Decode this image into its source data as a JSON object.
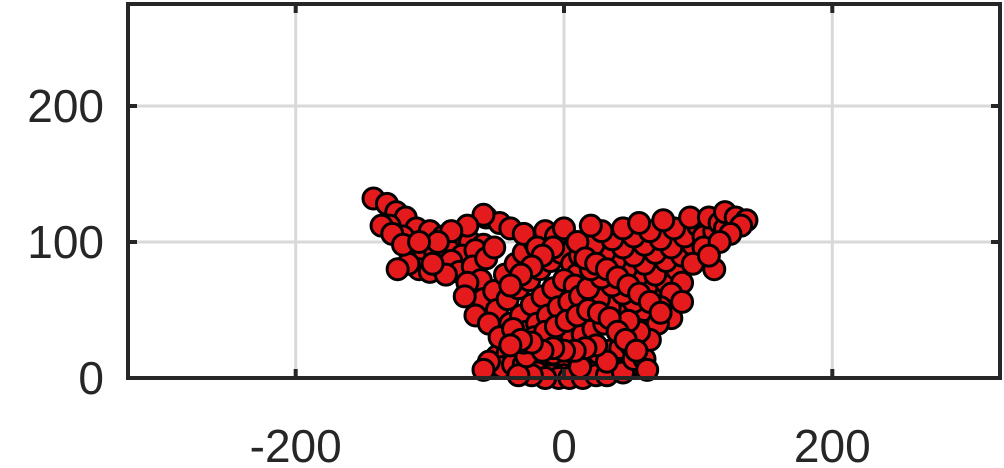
{
  "chart_data": {
    "type": "scatter",
    "title": "",
    "xlabel": "",
    "ylabel": "",
    "xlim": [
      -325,
      325
    ],
    "ylim": [
      0,
      275
    ],
    "x_ticks": [
      -200,
      0,
      200
    ],
    "x_tick_labels": [
      "-200",
      "0",
      "200"
    ],
    "y_ticks": [
      0,
      100,
      200
    ],
    "y_tick_labels": [
      "0",
      "100",
      "200"
    ],
    "grid": true,
    "legend": "none",
    "marker_color": "#e41a1c",
    "marker_edge_color": "#000000",
    "series": [
      {
        "points": [
          [
            -142,
            132
          ],
          [
            -132,
            128
          ],
          [
            -125,
            122
          ],
          [
            -118,
            118
          ],
          [
            -130,
            112
          ],
          [
            -110,
            110
          ],
          [
            -120,
            104
          ],
          [
            -100,
            108
          ],
          [
            -90,
            104
          ],
          [
            -80,
            102
          ],
          [
            -70,
            100
          ],
          [
            -60,
            98
          ],
          [
            -112,
            96
          ],
          [
            -104,
            90
          ],
          [
            -96,
            92
          ],
          [
            -86,
            94
          ],
          [
            -76,
            90
          ],
          [
            -66,
            94
          ],
          [
            -108,
            80
          ],
          [
            -100,
            78
          ],
          [
            -92,
            82
          ],
          [
            -84,
            86
          ],
          [
            -78,
            78
          ],
          [
            -68,
            82
          ],
          [
            -58,
            88
          ],
          [
            -52,
            96
          ],
          [
            -62,
            72
          ],
          [
            -72,
            70
          ],
          [
            -60,
            58
          ],
          [
            -52,
            64
          ],
          [
            -44,
            76
          ],
          [
            -36,
            84
          ],
          [
            -30,
            92
          ],
          [
            -22,
            100
          ],
          [
            -14,
            108
          ],
          [
            -6,
            104
          ],
          [
            -58,
            118
          ],
          [
            -48,
            114
          ],
          [
            -40,
            110
          ],
          [
            -30,
            106
          ],
          [
            -20,
            96
          ],
          [
            -50,
            50
          ],
          [
            -42,
            58
          ],
          [
            -34,
            66
          ],
          [
            -26,
            72
          ],
          [
            -18,
            80
          ],
          [
            -10,
            86
          ],
          [
            -2,
            92
          ],
          [
            6,
            84
          ],
          [
            10,
            76
          ],
          [
            -40,
            40
          ],
          [
            -32,
            46
          ],
          [
            -24,
            54
          ],
          [
            -16,
            60
          ],
          [
            -8,
            66
          ],
          [
            0,
            72
          ],
          [
            8,
            68
          ],
          [
            -46,
            26
          ],
          [
            -36,
            30
          ],
          [
            -28,
            34
          ],
          [
            -20,
            40
          ],
          [
            -12,
            46
          ],
          [
            -4,
            52
          ],
          [
            4,
            56
          ],
          [
            12,
            60
          ],
          [
            20,
            64
          ],
          [
            -50,
            16
          ],
          [
            -42,
            18
          ],
          [
            -34,
            20
          ],
          [
            -26,
            22
          ],
          [
            -18,
            24
          ],
          [
            -10,
            26
          ],
          [
            -2,
            28
          ],
          [
            6,
            30
          ],
          [
            14,
            32
          ],
          [
            22,
            36
          ],
          [
            30,
            40
          ],
          [
            -46,
            8
          ],
          [
            -38,
            10
          ],
          [
            -30,
            10
          ],
          [
            -22,
            12
          ],
          [
            -14,
            12
          ],
          [
            -6,
            14
          ],
          [
            2,
            14
          ],
          [
            10,
            16
          ],
          [
            18,
            16
          ],
          [
            26,
            18
          ],
          [
            34,
            20
          ],
          [
            42,
            22
          ],
          [
            50,
            24
          ],
          [
            -30,
            4
          ],
          [
            -20,
            4
          ],
          [
            -10,
            2
          ],
          [
            0,
            2
          ],
          [
            10,
            4
          ],
          [
            20,
            4
          ],
          [
            30,
            6
          ],
          [
            40,
            6
          ],
          [
            48,
            8
          ],
          [
            56,
            10
          ],
          [
            -4,
            0
          ],
          [
            4,
            0
          ],
          [
            -14,
            0
          ],
          [
            14,
            0
          ],
          [
            24,
            2
          ],
          [
            -24,
            2
          ],
          [
            32,
            2
          ],
          [
            -34,
            2
          ],
          [
            44,
            4
          ],
          [
            52,
            14
          ],
          [
            60,
            14
          ],
          [
            -56,
            12
          ],
          [
            -60,
            6
          ],
          [
            62,
            6
          ],
          [
            58,
            30
          ],
          [
            50,
            38
          ],
          [
            42,
            46
          ],
          [
            34,
            52
          ],
          [
            26,
            58
          ],
          [
            18,
            66
          ],
          [
            60,
            50
          ],
          [
            52,
            56
          ],
          [
            44,
            62
          ],
          [
            36,
            68
          ],
          [
            28,
            74
          ],
          [
            20,
            80
          ],
          [
            12,
            90
          ],
          [
            70,
            60
          ],
          [
            62,
            68
          ],
          [
            54,
            74
          ],
          [
            46,
            80
          ],
          [
            38,
            86
          ],
          [
            30,
            92
          ],
          [
            22,
            98
          ],
          [
            76,
            70
          ],
          [
            68,
            76
          ],
          [
            60,
            84
          ],
          [
            52,
            90
          ],
          [
            44,
            96
          ],
          [
            36,
            102
          ],
          [
            28,
            108
          ],
          [
            20,
            112
          ],
          [
            84,
            80
          ],
          [
            76,
            86
          ],
          [
            68,
            92
          ],
          [
            60,
            98
          ],
          [
            52,
            104
          ],
          [
            44,
            110
          ],
          [
            88,
            90
          ],
          [
            80,
            96
          ],
          [
            72,
            102
          ],
          [
            64,
            108
          ],
          [
            56,
            114
          ],
          [
            96,
            98
          ],
          [
            90,
            104
          ],
          [
            82,
            110
          ],
          [
            74,
            116
          ],
          [
            100,
            112
          ],
          [
            94,
            118
          ],
          [
            104,
            104
          ],
          [
            112,
            108
          ],
          [
            108,
            118
          ],
          [
            116,
            114
          ],
          [
            120,
            110
          ],
          [
            112,
            80
          ],
          [
            104,
            96
          ],
          [
            96,
            84
          ],
          [
            88,
            70
          ],
          [
            80,
            62
          ],
          [
            72,
            52
          ],
          [
            80,
            44
          ],
          [
            88,
            56
          ],
          [
            70,
            40
          ],
          [
            64,
            28
          ],
          [
            56,
            34
          ],
          [
            48,
            42
          ],
          [
            -28,
            16
          ],
          [
            -8,
            18
          ],
          [
            12,
            8
          ],
          [
            32,
            12
          ],
          [
            -60,
            120
          ],
          [
            -72,
            112
          ],
          [
            -84,
            108
          ],
          [
            -94,
            100
          ],
          [
            -116,
            84
          ],
          [
            -124,
            80
          ],
          [
            -88,
            76
          ],
          [
            -74,
            60
          ],
          [
            -66,
            46
          ],
          [
            -56,
            40
          ],
          [
            -48,
            30
          ],
          [
            -38,
            36
          ],
          [
            -30,
            26
          ],
          [
            -22,
            30
          ],
          [
            -14,
            34
          ],
          [
            -6,
            38
          ],
          [
            2,
            42
          ],
          [
            10,
            46
          ],
          [
            18,
            50
          ],
          [
            26,
            48
          ],
          [
            34,
            44
          ],
          [
            40,
            34
          ],
          [
            46,
            28
          ],
          [
            54,
            20
          ],
          [
            0,
            110
          ],
          [
            10,
            100
          ],
          [
            -8,
            96
          ],
          [
            16,
            88
          ],
          [
            -16,
            90
          ],
          [
            24,
            84
          ],
          [
            -24,
            82
          ],
          [
            -32,
            76
          ],
          [
            -40,
            68
          ],
          [
            32,
            80
          ],
          [
            40,
            74
          ],
          [
            48,
            68
          ],
          [
            56,
            62
          ],
          [
            64,
            56
          ],
          [
            72,
            48
          ],
          [
            24,
            24
          ],
          [
            16,
            22
          ],
          [
            8,
            20
          ],
          [
            0,
            20
          ],
          [
            -8,
            22
          ],
          [
            -16,
            20
          ],
          [
            -24,
            26
          ],
          [
            -32,
            28
          ],
          [
            -40,
            24
          ],
          [
            120,
            122
          ],
          [
            128,
            118
          ],
          [
            136,
            116
          ],
          [
            132,
            112
          ],
          [
            124,
            106
          ],
          [
            116,
            100
          ],
          [
            108,
            90
          ],
          [
            -136,
            112
          ],
          [
            -128,
            106
          ],
          [
            -120,
            98
          ],
          [
            -108,
            100
          ],
          [
            -98,
            84
          ]
        ]
      }
    ]
  }
}
